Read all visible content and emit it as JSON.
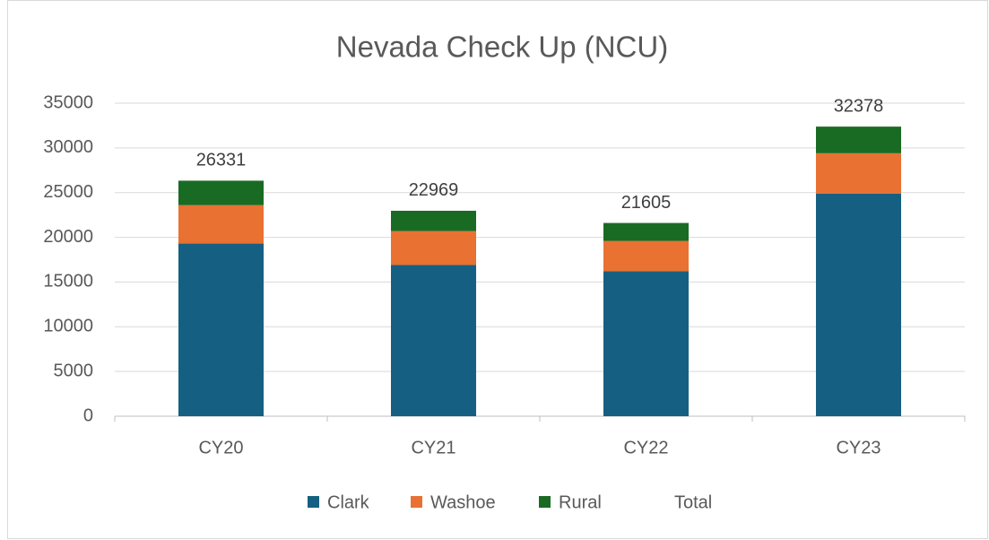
{
  "chart_data": {
    "type": "stacked_bar",
    "title": "Nevada Check Up (NCU)",
    "categories": [
      "CY20",
      "CY21",
      "CY22",
      "CY23"
    ],
    "series": [
      {
        "name": "Clark",
        "color": "#156082",
        "values": [
          19300,
          16900,
          16200,
          24900
        ]
      },
      {
        "name": "Washoe",
        "color": "#e97132",
        "values": [
          4300,
          3800,
          3400,
          4500
        ]
      },
      {
        "name": "Rural",
        "color": "#196b24",
        "values": [
          2731,
          2269,
          2005,
          2978
        ]
      },
      {
        "name": "Total",
        "color": "none",
        "values": [
          26331,
          22969,
          21605,
          32378
        ]
      }
    ],
    "ylim": [
      0,
      35000
    ],
    "yticks": [
      0,
      5000,
      10000,
      15000,
      20000,
      25000,
      30000,
      35000
    ],
    "grid": true,
    "legend": "bottom"
  }
}
